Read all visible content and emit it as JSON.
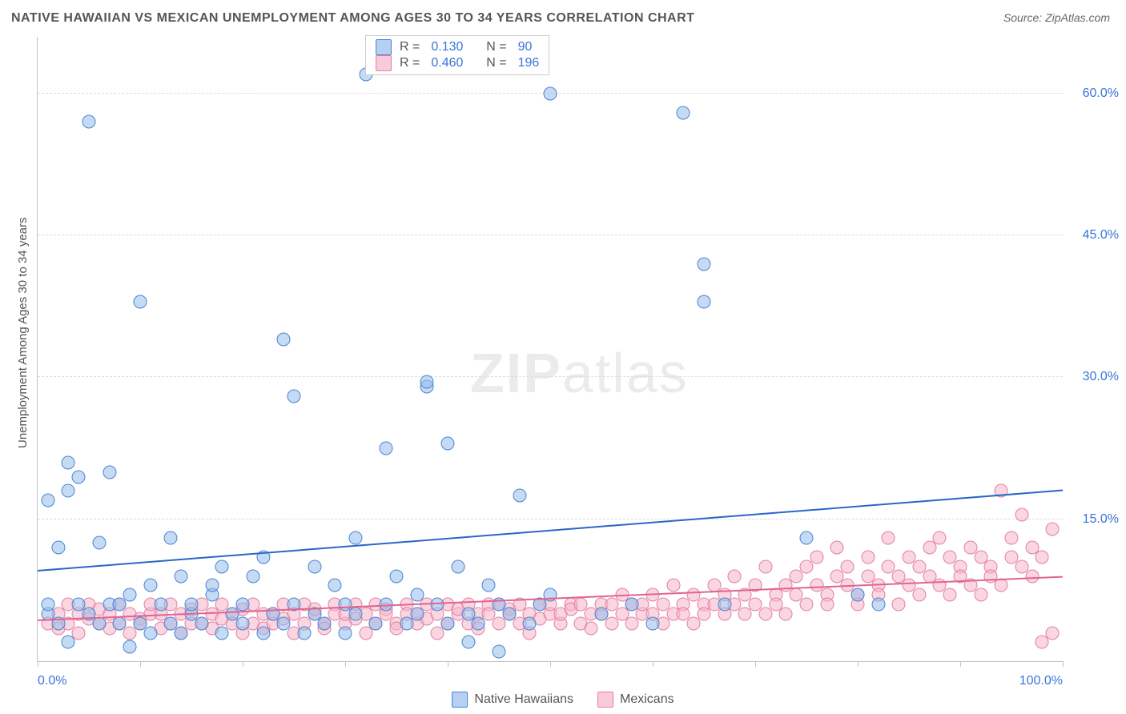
{
  "title": "NATIVE HAWAIIAN VS MEXICAN UNEMPLOYMENT AMONG AGES 30 TO 34 YEARS CORRELATION CHART",
  "source": "Source: ZipAtlas.com",
  "ylabel": "Unemployment Among Ages 30 to 34 years",
  "watermark": {
    "bold": "ZIP",
    "light": "atlas"
  },
  "chart": {
    "type": "scatter",
    "xlim": [
      0,
      100
    ],
    "ylim": [
      0,
      66
    ],
    "y_ticks": [
      15,
      30,
      45,
      60
    ],
    "y_tick_labels": [
      "15.0%",
      "30.0%",
      "45.0%",
      "60.0%"
    ],
    "x_ticks": [
      0,
      10,
      20,
      30,
      40,
      50,
      60,
      70,
      80,
      90,
      100
    ],
    "x_tick_labels": {
      "0": "0.0%",
      "100": "100.0%"
    },
    "grid_color": "#dcdcdc",
    "axis_color": "#bfc2c6",
    "background_color": "#ffffff",
    "label_color": "#3a74d8",
    "title_color": "#555555",
    "series": [
      {
        "name": "Native Hawaiians",
        "color_fill": "rgba(149,188,234,0.55)",
        "color_stroke": "#4a84d6",
        "marker_size": 15,
        "R": "0.130",
        "N": "90",
        "trend": {
          "x0": 0,
          "y0": 9.5,
          "x1": 100,
          "y1": 18.0,
          "color": "#2a66c8",
          "width": 2
        },
        "points": [
          [
            1,
            5
          ],
          [
            1,
            6
          ],
          [
            1,
            17
          ],
          [
            2,
            4
          ],
          [
            2,
            12
          ],
          [
            3,
            2
          ],
          [
            3,
            21
          ],
          [
            3,
            18
          ],
          [
            4,
            6
          ],
          [
            4,
            19.5
          ],
          [
            5,
            5
          ],
          [
            5,
            57
          ],
          [
            6,
            12.5
          ],
          [
            6,
            4
          ],
          [
            7,
            6
          ],
          [
            7,
            20
          ],
          [
            8,
            4
          ],
          [
            8,
            6
          ],
          [
            9,
            1.5
          ],
          [
            9,
            7
          ],
          [
            10,
            4
          ],
          [
            10,
            38
          ],
          [
            11,
            3
          ],
          [
            11,
            8
          ],
          [
            12,
            6
          ],
          [
            13,
            4
          ],
          [
            13,
            13
          ],
          [
            14,
            3
          ],
          [
            14,
            9
          ],
          [
            15,
            5
          ],
          [
            15,
            6
          ],
          [
            16,
            4
          ],
          [
            17,
            7
          ],
          [
            17,
            8
          ],
          [
            18,
            3
          ],
          [
            18,
            10
          ],
          [
            19,
            5
          ],
          [
            20,
            4
          ],
          [
            20,
            6
          ],
          [
            21,
            9
          ],
          [
            22,
            3
          ],
          [
            22,
            11
          ],
          [
            23,
            5
          ],
          [
            24,
            34
          ],
          [
            24,
            4
          ],
          [
            25,
            28
          ],
          [
            25,
            6
          ],
          [
            26,
            3
          ],
          [
            27,
            10
          ],
          [
            27,
            5
          ],
          [
            28,
            4
          ],
          [
            29,
            8
          ],
          [
            30,
            6
          ],
          [
            30,
            3
          ],
          [
            31,
            5
          ],
          [
            31,
            13
          ],
          [
            32,
            62
          ],
          [
            33,
            4
          ],
          [
            34,
            6
          ],
          [
            34,
            22.5
          ],
          [
            35,
            9
          ],
          [
            36,
            4
          ],
          [
            37,
            5
          ],
          [
            37,
            7
          ],
          [
            38,
            29
          ],
          [
            38,
            29.5
          ],
          [
            39,
            6
          ],
          [
            40,
            23
          ],
          [
            40,
            4
          ],
          [
            41,
            10
          ],
          [
            42,
            5
          ],
          [
            42,
            2
          ],
          [
            43,
            4
          ],
          [
            44,
            8
          ],
          [
            45,
            1
          ],
          [
            45,
            6
          ],
          [
            46,
            5
          ],
          [
            47,
            17.5
          ],
          [
            48,
            4
          ],
          [
            49,
            6
          ],
          [
            50,
            60
          ],
          [
            50,
            7
          ],
          [
            55,
            5
          ],
          [
            58,
            6
          ],
          [
            60,
            4
          ],
          [
            63,
            58
          ],
          [
            65,
            38
          ],
          [
            65,
            42
          ],
          [
            67,
            6
          ],
          [
            75,
            13
          ],
          [
            80,
            7
          ],
          [
            82,
            6
          ]
        ]
      },
      {
        "name": "Mexicans",
        "color_fill": "rgba(246,180,200,0.55)",
        "color_stroke": "#e37fa2",
        "marker_size": 15,
        "R": "0.460",
        "N": "196",
        "trend": {
          "x0": 0,
          "y0": 4.2,
          "x1": 100,
          "y1": 8.8,
          "color": "#e26390",
          "width": 2
        },
        "points": [
          [
            1,
            4
          ],
          [
            2,
            5
          ],
          [
            2,
            3.5
          ],
          [
            3,
            6
          ],
          [
            3,
            4
          ],
          [
            4,
            5
          ],
          [
            4,
            3
          ],
          [
            5,
            4.5
          ],
          [
            5,
            6
          ],
          [
            6,
            4
          ],
          [
            6,
            5.5
          ],
          [
            7,
            3.5
          ],
          [
            7,
            5
          ],
          [
            8,
            4
          ],
          [
            8,
            6
          ],
          [
            9,
            5
          ],
          [
            9,
            3
          ],
          [
            10,
            4.5
          ],
          [
            10,
            4
          ],
          [
            11,
            5
          ],
          [
            11,
            6
          ],
          [
            12,
            3.5
          ],
          [
            12,
            5
          ],
          [
            13,
            4
          ],
          [
            13,
            6
          ],
          [
            14,
            5
          ],
          [
            14,
            3
          ],
          [
            15,
            4
          ],
          [
            15,
            5.5
          ],
          [
            16,
            6
          ],
          [
            16,
            4
          ],
          [
            17,
            5
          ],
          [
            17,
            3.5
          ],
          [
            18,
            4.5
          ],
          [
            18,
            6
          ],
          [
            19,
            5
          ],
          [
            19,
            4
          ],
          [
            20,
            3
          ],
          [
            20,
            5.5
          ],
          [
            21,
            4
          ],
          [
            21,
            6
          ],
          [
            22,
            5
          ],
          [
            22,
            3.5
          ],
          [
            23,
            4
          ],
          [
            23,
            5
          ],
          [
            24,
            6
          ],
          [
            24,
            4.5
          ],
          [
            25,
            5
          ],
          [
            25,
            3
          ],
          [
            26,
            4
          ],
          [
            26,
            6
          ],
          [
            27,
            5
          ],
          [
            27,
            5.5
          ],
          [
            28,
            4
          ],
          [
            28,
            3.5
          ],
          [
            29,
            6
          ],
          [
            29,
            5
          ],
          [
            30,
            4
          ],
          [
            30,
            5
          ],
          [
            31,
            6
          ],
          [
            31,
            4.5
          ],
          [
            32,
            5
          ],
          [
            32,
            3
          ],
          [
            33,
            4
          ],
          [
            33,
            6
          ],
          [
            34,
            5.5
          ],
          [
            34,
            5
          ],
          [
            35,
            4
          ],
          [
            35,
            3.5
          ],
          [
            36,
            6
          ],
          [
            36,
            5
          ],
          [
            37,
            4
          ],
          [
            37,
            5
          ],
          [
            38,
            6
          ],
          [
            38,
            4.5
          ],
          [
            39,
            5
          ],
          [
            39,
            3
          ],
          [
            40,
            6
          ],
          [
            40,
            4
          ],
          [
            41,
            5
          ],
          [
            41,
            5.5
          ],
          [
            42,
            6
          ],
          [
            42,
            4
          ],
          [
            43,
            5
          ],
          [
            43,
            3.5
          ],
          [
            44,
            6
          ],
          [
            44,
            5
          ],
          [
            45,
            4
          ],
          [
            45,
            6
          ],
          [
            46,
            5.5
          ],
          [
            46,
            5
          ],
          [
            47,
            4
          ],
          [
            47,
            6
          ],
          [
            48,
            5
          ],
          [
            48,
            3
          ],
          [
            49,
            6
          ],
          [
            49,
            4.5
          ],
          [
            50,
            5
          ],
          [
            50,
            6
          ],
          [
            51,
            4
          ],
          [
            51,
            5
          ],
          [
            52,
            6
          ],
          [
            52,
            5.5
          ],
          [
            53,
            4
          ],
          [
            53,
            6
          ],
          [
            54,
            5
          ],
          [
            54,
            3.5
          ],
          [
            55,
            6
          ],
          [
            55,
            5
          ],
          [
            56,
            4
          ],
          [
            56,
            6
          ],
          [
            57,
            5
          ],
          [
            57,
            7
          ],
          [
            58,
            6
          ],
          [
            58,
            4
          ],
          [
            59,
            5
          ],
          [
            59,
            6
          ],
          [
            60,
            7
          ],
          [
            60,
            5
          ],
          [
            61,
            4
          ],
          [
            61,
            6
          ],
          [
            62,
            5
          ],
          [
            62,
            8
          ],
          [
            63,
            6
          ],
          [
            63,
            5
          ],
          [
            64,
            7
          ],
          [
            64,
            4
          ],
          [
            65,
            6
          ],
          [
            65,
            5
          ],
          [
            66,
            8
          ],
          [
            66,
            6
          ],
          [
            67,
            5
          ],
          [
            67,
            7
          ],
          [
            68,
            6
          ],
          [
            68,
            9
          ],
          [
            69,
            5
          ],
          [
            69,
            7
          ],
          [
            70,
            6
          ],
          [
            70,
            8
          ],
          [
            71,
            5
          ],
          [
            71,
            10
          ],
          [
            72,
            7
          ],
          [
            72,
            6
          ],
          [
            73,
            8
          ],
          [
            73,
            5
          ],
          [
            74,
            9
          ],
          [
            74,
            7
          ],
          [
            75,
            6
          ],
          [
            75,
            10
          ],
          [
            76,
            8
          ],
          [
            76,
            11
          ],
          [
            77,
            7
          ],
          [
            77,
            6
          ],
          [
            78,
            9
          ],
          [
            78,
            12
          ],
          [
            79,
            8
          ],
          [
            79,
            10
          ],
          [
            80,
            7
          ],
          [
            80,
            6
          ],
          [
            81,
            11
          ],
          [
            81,
            9
          ],
          [
            82,
            8
          ],
          [
            82,
            7
          ],
          [
            83,
            13
          ],
          [
            83,
            10
          ],
          [
            84,
            9
          ],
          [
            84,
            6
          ],
          [
            85,
            11
          ],
          [
            85,
            8
          ],
          [
            86,
            10
          ],
          [
            86,
            7
          ],
          [
            87,
            12
          ],
          [
            87,
            9
          ],
          [
            88,
            8
          ],
          [
            88,
            13
          ],
          [
            89,
            11
          ],
          [
            89,
            7
          ],
          [
            90,
            10
          ],
          [
            90,
            9
          ],
          [
            91,
            8
          ],
          [
            91,
            12
          ],
          [
            92,
            11
          ],
          [
            92,
            7
          ],
          [
            93,
            10
          ],
          [
            93,
            9
          ],
          [
            94,
            18
          ],
          [
            94,
            8
          ],
          [
            95,
            13
          ],
          [
            95,
            11
          ],
          [
            96,
            10
          ],
          [
            96,
            15.5
          ],
          [
            97,
            9
          ],
          [
            97,
            12
          ],
          [
            98,
            11
          ],
          [
            98,
            2
          ],
          [
            99,
            14
          ],
          [
            99,
            3
          ]
        ]
      }
    ]
  },
  "legend_top": [
    {
      "swatch": "blue",
      "r_label": "R =",
      "r_val": "0.130",
      "n_label": "N =",
      "n_val": "90"
    },
    {
      "swatch": "pink",
      "r_label": "R =",
      "r_val": "0.460",
      "n_label": "N =",
      "n_val": "196"
    }
  ],
  "legend_bottom": [
    {
      "swatch": "blue",
      "label": "Native Hawaiians"
    },
    {
      "swatch": "pink",
      "label": "Mexicans"
    }
  ]
}
